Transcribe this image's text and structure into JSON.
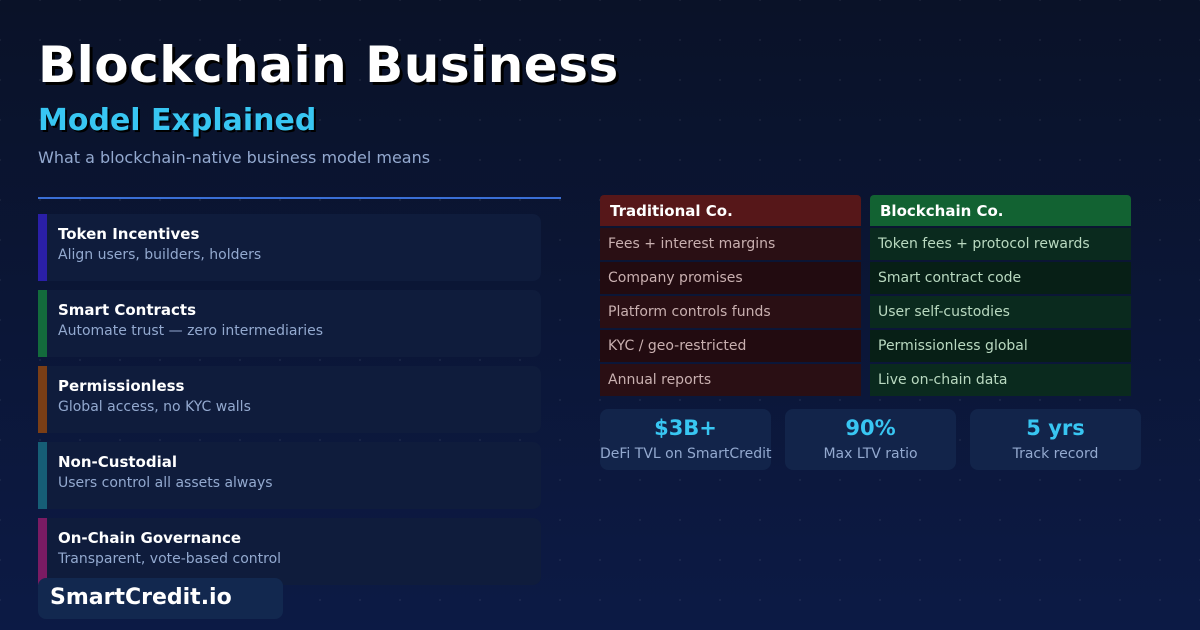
{
  "header": {
    "title": "Blockchain Business",
    "subtitle": "Model Explained",
    "tagline": "What a blockchain-native business model means"
  },
  "features": [
    {
      "title": "Token Incentives",
      "desc": "Align users, builders, holders",
      "color": "#2a1fa8"
    },
    {
      "title": "Smart Contracts",
      "desc": "Automate trust — zero intermediaries",
      "color": "#136b3c"
    },
    {
      "title": "Permissionless",
      "desc": "Global access, no KYC walls",
      "color": "#7a3e16"
    },
    {
      "title": "Non-Custodial",
      "desc": "Users control all assets always",
      "color": "#165e76"
    },
    {
      "title": "On-Chain Governance",
      "desc": "Transparent, vote-based control",
      "color": "#7a1b63"
    }
  ],
  "comparison": {
    "traditional": {
      "header": "Traditional Co.",
      "header_color": "#561719",
      "rows": [
        "Fees + interest margins",
        "Company promises",
        "Platform controls funds",
        "KYC / geo-restricted",
        "Annual reports"
      ]
    },
    "blockchain": {
      "header": "Blockchain Co.",
      "header_color": "#126232",
      "rows": [
        "Token fees + protocol rewards",
        "Smart contract code",
        "User self-custodies",
        "Permissionless global",
        "Live on-chain data"
      ]
    }
  },
  "stats": [
    {
      "value": "$3B+",
      "label": "DeFi TVL on SmartCredit"
    },
    {
      "value": "90%",
      "label": "Max LTV ratio"
    },
    {
      "value": "5 yrs",
      "label": "Track record"
    }
  ],
  "brand": "SmartCredit.io"
}
